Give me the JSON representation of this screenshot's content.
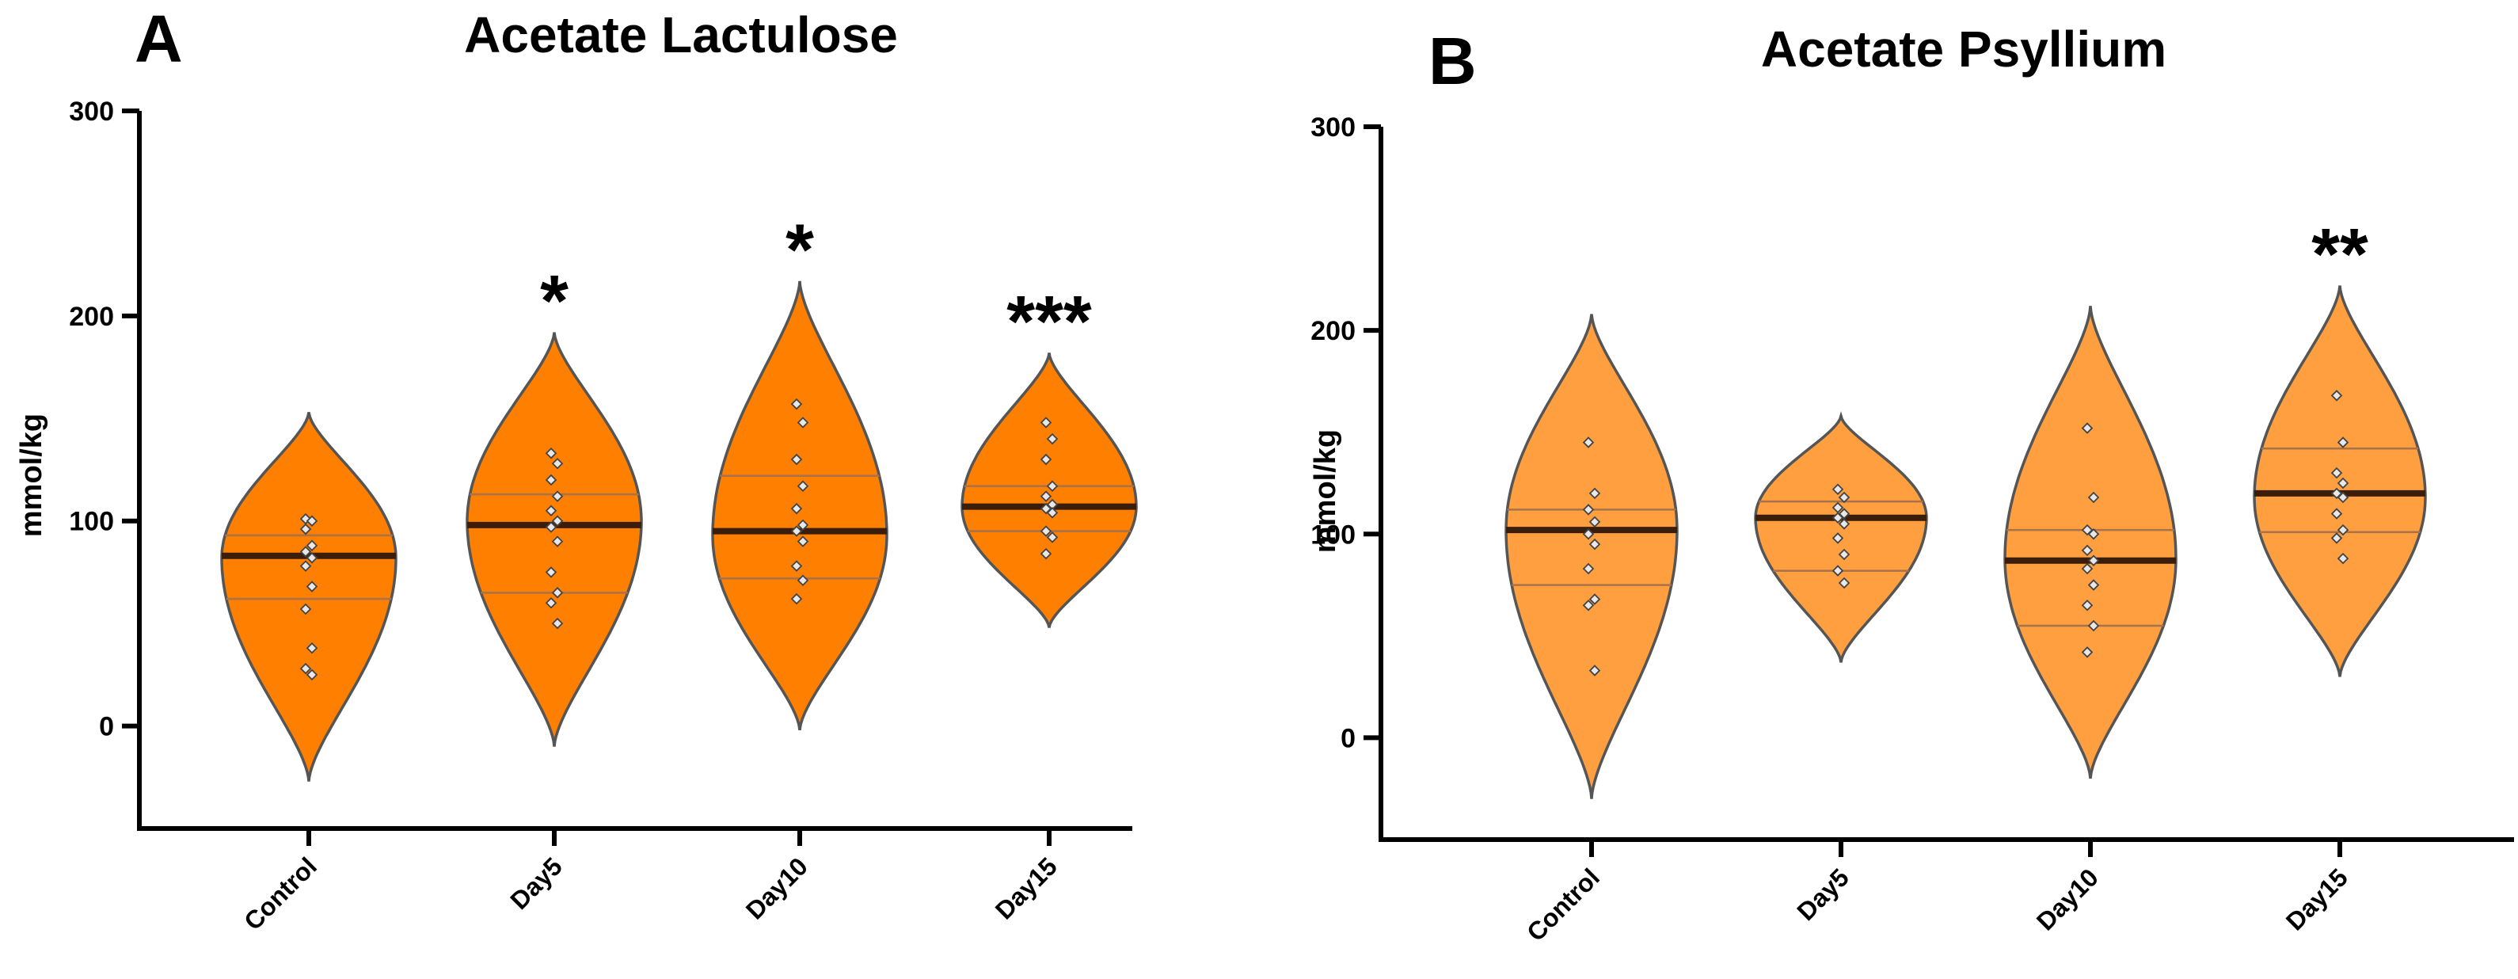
{
  "chart_data": [
    {
      "type": "violin",
      "panel_label": "A",
      "title": "Acetate Lactulose",
      "ylabel": "mmol/kg",
      "xlabel": "",
      "ylim": [
        -50,
        300
      ],
      "yticks": [
        0,
        100,
        200,
        300
      ],
      "grid": false,
      "fill_color": "#FF7F00",
      "categories": [
        "Control",
        "Day5",
        "Day10",
        "Day15"
      ],
      "groups": [
        {
          "category": "Control",
          "min": -27,
          "max": 153,
          "median": 83,
          "q1": 62,
          "q3": 93,
          "density_peak": 82,
          "significance": "",
          "points": [
            101,
            100,
            96,
            88,
            85,
            82,
            78,
            68,
            57,
            38,
            28,
            25
          ]
        },
        {
          "category": "Day5",
          "min": -10,
          "max": 192,
          "median": 98,
          "q1": 65,
          "q3": 113,
          "density_peak": 100,
          "significance": "*",
          "points": [
            133,
            128,
            120,
            112,
            105,
            100,
            97,
            90,
            75,
            65,
            60,
            50
          ]
        },
        {
          "category": "Day10",
          "min": -2,
          "max": 217,
          "median": 95,
          "q1": 72,
          "q3": 122,
          "density_peak": 93,
          "significance": "*",
          "points": [
            157,
            148,
            130,
            117,
            106,
            98,
            95,
            90,
            78,
            71,
            62
          ]
        },
        {
          "category": "Day15",
          "min": 48,
          "max": 182,
          "median": 107,
          "q1": 95,
          "q3": 117,
          "density_peak": 107,
          "significance": "***",
          "points": [
            148,
            140,
            130,
            117,
            112,
            108,
            106,
            104,
            95,
            92,
            84
          ]
        }
      ]
    },
    {
      "type": "violin",
      "panel_label": "B",
      "title": "Acetate Psyllium",
      "ylabel": "mmol/kg",
      "xlabel": "",
      "ylim": [
        -50,
        300
      ],
      "yticks": [
        0,
        100,
        200,
        300
      ],
      "grid": false,
      "fill_color": "#FF9F3F",
      "categories": [
        "Control",
        "Day5",
        "Day10",
        "Day15"
      ],
      "groups": [
        {
          "category": "Control",
          "min": -30,
          "max": 208,
          "median": 102,
          "q1": 75,
          "q3": 112,
          "density_peak": 102,
          "significance": "",
          "points": [
            145,
            120,
            112,
            106,
            100,
            95,
            83,
            68,
            65,
            33
          ]
        },
        {
          "category": "Day5",
          "min": 37,
          "max": 158,
          "median": 108,
          "q1": 82,
          "q3": 116,
          "density_peak": 108,
          "significance": "",
          "points": [
            122,
            118,
            113,
            110,
            108,
            105,
            98,
            90,
            82,
            76
          ]
        },
        {
          "category": "Day10",
          "min": -20,
          "max": 212,
          "median": 87,
          "q1": 55,
          "q3": 102,
          "density_peak": 88,
          "significance": "",
          "points": [
            152,
            118,
            102,
            100,
            92,
            87,
            83,
            75,
            65,
            55,
            42
          ]
        },
        {
          "category": "Day15",
          "min": 30,
          "max": 222,
          "median": 120,
          "q1": 101,
          "q3": 142,
          "density_peak": 118,
          "significance": "**",
          "points": [
            168,
            145,
            130,
            125,
            120,
            118,
            110,
            102,
            98,
            88
          ]
        }
      ]
    }
  ]
}
